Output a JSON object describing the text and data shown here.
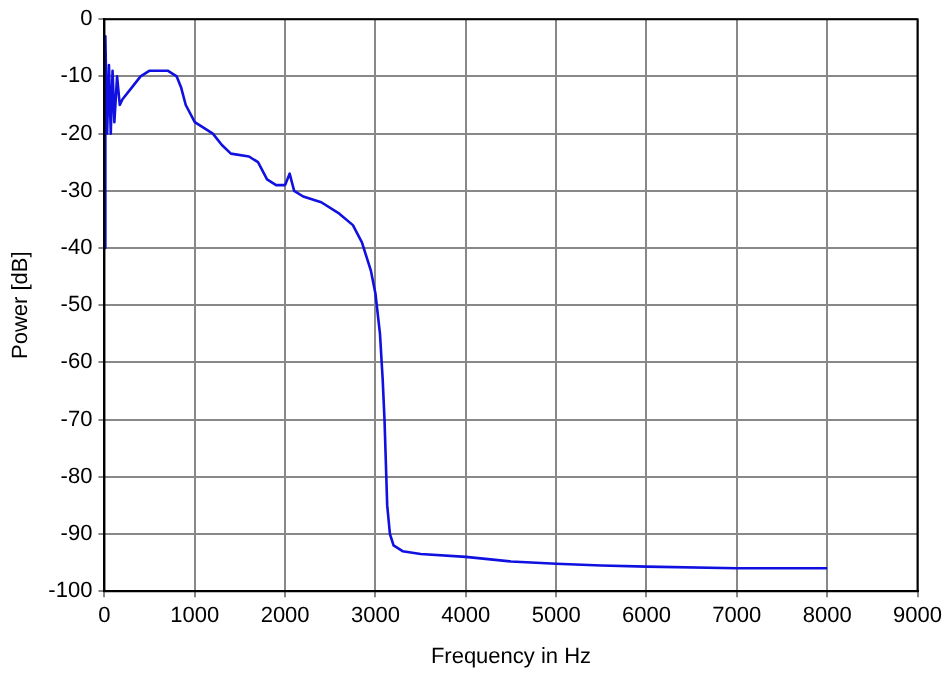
{
  "chart_data": {
    "type": "line",
    "xlabel": "Frequency in Hz",
    "ylabel": "Power [dB]",
    "x": [
      0,
      10,
      30,
      50,
      70,
      90,
      110,
      140,
      170,
      200,
      300,
      400,
      500,
      600,
      700,
      800,
      850,
      900,
      1000,
      1100,
      1200,
      1300,
      1400,
      1600,
      1700,
      1800,
      1900,
      2000,
      2050,
      2100,
      2200,
      2400,
      2600,
      2750,
      2850,
      2950,
      3000,
      3050,
      3080,
      3100,
      3130,
      3160,
      3200,
      3300,
      3500,
      4000,
      4500,
      5000,
      5500,
      6000,
      7000,
      8000
    ],
    "series": [
      {
        "color": "#1010e0",
        "values": [
          -40,
          -3,
          -20,
          -8,
          -20,
          -9,
          -18,
          -10,
          -15,
          -14,
          -12,
          -10,
          -9,
          -9,
          -9,
          -10,
          -12,
          -15,
          -18,
          -19,
          -20,
          -22,
          -23.5,
          -24,
          -25,
          -28,
          -29,
          -29,
          -27,
          -30,
          -31,
          -32,
          -34,
          -36,
          -39,
          -44,
          -48,
          -55,
          -63,
          -70,
          -85,
          -90,
          -92,
          -93,
          -93.5,
          -94,
          -94.8,
          -95.2,
          -95.5,
          -95.7,
          -96,
          -96
        ]
      }
    ],
    "xlim": [
      0,
      9000
    ],
    "xticks": [
      0,
      1000,
      2000,
      3000,
      4000,
      5000,
      6000,
      7000,
      8000,
      9000
    ],
    "ylim": [
      -100,
      0
    ],
    "yticks": [
      -100,
      -90,
      -80,
      -70,
      -60,
      -50,
      -40,
      -30,
      -20,
      -10,
      0
    ],
    "grid": true,
    "legend": false,
    "marker": "none",
    "line_style": "solid"
  }
}
